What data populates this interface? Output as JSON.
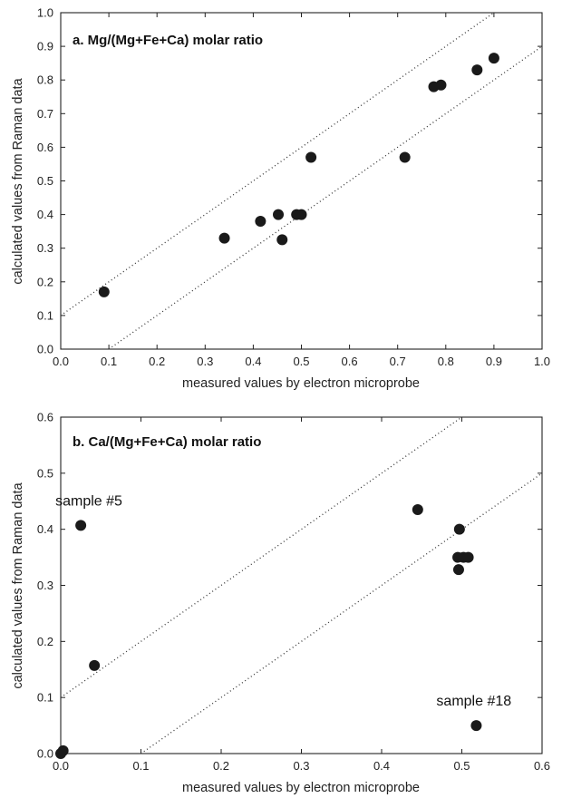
{
  "chart_data": [
    {
      "type": "scatter",
      "title": "a. Mg/(Mg+Fe+Ca) molar ratio",
      "xlabel": "measured values by electron microprobe",
      "ylabel": "calculated values from Raman data",
      "xlim": [
        0.0,
        1.0
      ],
      "ylim": [
        0.0,
        1.0
      ],
      "xticks": [
        "0.0",
        "0.1",
        "0.2",
        "0.3",
        "0.4",
        "0.5",
        "0.6",
        "0.7",
        "0.8",
        "0.9",
        "1.0"
      ],
      "yticks": [
        "0.0",
        "0.1",
        "0.2",
        "0.3",
        "0.4",
        "0.5",
        "0.6",
        "0.7",
        "0.8",
        "0.9",
        "1.0"
      ],
      "grid": false,
      "reference_lines": [
        {
          "style": "dotted",
          "slope": 1,
          "intercept": 0.1
        },
        {
          "style": "dotted",
          "slope": 1,
          "intercept": -0.1
        }
      ],
      "points": [
        {
          "x": 0.09,
          "y": 0.17
        },
        {
          "x": 0.34,
          "y": 0.33
        },
        {
          "x": 0.415,
          "y": 0.38
        },
        {
          "x": 0.452,
          "y": 0.4
        },
        {
          "x": 0.46,
          "y": 0.325
        },
        {
          "x": 0.49,
          "y": 0.4
        },
        {
          "x": 0.5,
          "y": 0.4
        },
        {
          "x": 0.52,
          "y": 0.57
        },
        {
          "x": 0.715,
          "y": 0.57
        },
        {
          "x": 0.775,
          "y": 0.78
        },
        {
          "x": 0.79,
          "y": 0.785
        },
        {
          "x": 0.865,
          "y": 0.83
        },
        {
          "x": 0.9,
          "y": 0.865
        }
      ],
      "annotations": []
    },
    {
      "type": "scatter",
      "title": "b. Ca/(Mg+Fe+Ca) molar ratio",
      "xlabel": "measured values by electron microprobe",
      "ylabel": "calculated values from Raman data",
      "xlim": [
        0.0,
        0.6
      ],
      "ylim": [
        0.0,
        0.6
      ],
      "xticks": [
        "0.0",
        "0.1",
        "0.2",
        "0.3",
        "0.4",
        "0.5",
        "0.6"
      ],
      "yticks": [
        "0.0",
        "0.1",
        "0.2",
        "0.3",
        "0.4",
        "0.5",
        "0.6"
      ],
      "grid": false,
      "reference_lines": [
        {
          "style": "dotted",
          "slope": 1,
          "intercept": 0.1
        },
        {
          "style": "dotted",
          "slope": 1,
          "intercept": -0.1
        }
      ],
      "points": [
        {
          "x": 0.0,
          "y": 0.0
        },
        {
          "x": 0.003,
          "y": 0.005
        },
        {
          "x": 0.025,
          "y": 0.407
        },
        {
          "x": 0.042,
          "y": 0.157
        },
        {
          "x": 0.445,
          "y": 0.435
        },
        {
          "x": 0.497,
          "y": 0.4
        },
        {
          "x": 0.495,
          "y": 0.35
        },
        {
          "x": 0.502,
          "y": 0.35
        },
        {
          "x": 0.508,
          "y": 0.35
        },
        {
          "x": 0.496,
          "y": 0.328
        },
        {
          "x": 0.518,
          "y": 0.05
        }
      ],
      "annotations": [
        {
          "text": "sample #5",
          "x": 0.025,
          "y": 0.407
        },
        {
          "text": "sample #18",
          "x": 0.518,
          "y": 0.05
        }
      ]
    }
  ]
}
